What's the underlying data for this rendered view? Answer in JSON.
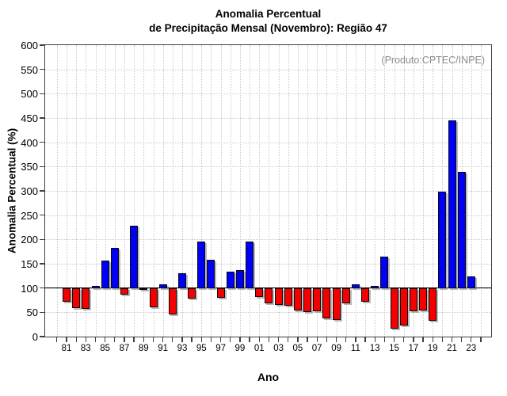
{
  "title": {
    "line1": "Anomalia Percentual",
    "line2": "de Precipitação Mensal (Novembro): Região 47"
  },
  "annotation": "(Produto:CPTEC/INPE)",
  "axes": {
    "y_label": "Anomalia Percentual (%)",
    "x_label": "Ano"
  },
  "colors": {
    "bar_positive": "#0000f5",
    "bar_negative": "#f50000",
    "bar_border": "#0a0a0a",
    "baseline": "#000000",
    "grid": "#c9c9c9",
    "frame": "#3f3f3f",
    "annotation_text": "#8c8c8c"
  },
  "chart_data": {
    "type": "bar",
    "title": "Anomalia Percentual de Precipitação Mensal (Novembro): Região 47",
    "xlabel": "Ano",
    "ylabel": "Anomalia Percentual (%)",
    "annotation": "(Produto:CPTEC/INPE)",
    "ylim": [
      0,
      600
    ],
    "y_tick_step": 50,
    "baseline": 100,
    "grid": true,
    "legend": "none",
    "x_axis_range": [
      1980,
      2024
    ],
    "x_tick_labels": [
      "81",
      "83",
      "85",
      "87",
      "89",
      "91",
      "93",
      "95",
      "97",
      "99",
      "01",
      "03",
      "05",
      "07",
      "09",
      "11",
      "13",
      "15",
      "17",
      "19",
      "21",
      "23"
    ],
    "x": [
      1981,
      1982,
      1983,
      1984,
      1985,
      1986,
      1987,
      1988,
      1989,
      1990,
      1991,
      1992,
      1993,
      1994,
      1995,
      1996,
      1997,
      1998,
      1999,
      2000,
      2001,
      2002,
      2003,
      2004,
      2005,
      2006,
      2007,
      2008,
      2009,
      2010,
      2011,
      2012,
      2013,
      2014,
      2015,
      2016,
      2017,
      2018,
      2019,
      2020,
      2021,
      2022,
      2023
    ],
    "values": [
      72,
      59,
      57,
      104,
      156,
      182,
      86,
      228,
      100,
      61,
      107,
      46,
      130,
      79,
      195,
      158,
      80,
      134,
      137,
      195,
      82,
      68,
      66,
      64,
      54,
      50,
      52,
      37,
      35,
      68,
      107,
      71,
      104,
      165,
      17,
      22,
      52,
      53,
      33,
      299,
      446,
      339,
      124
    ],
    "positive_color_rule": "value >= 100 -> blue, value < 100 -> red"
  }
}
